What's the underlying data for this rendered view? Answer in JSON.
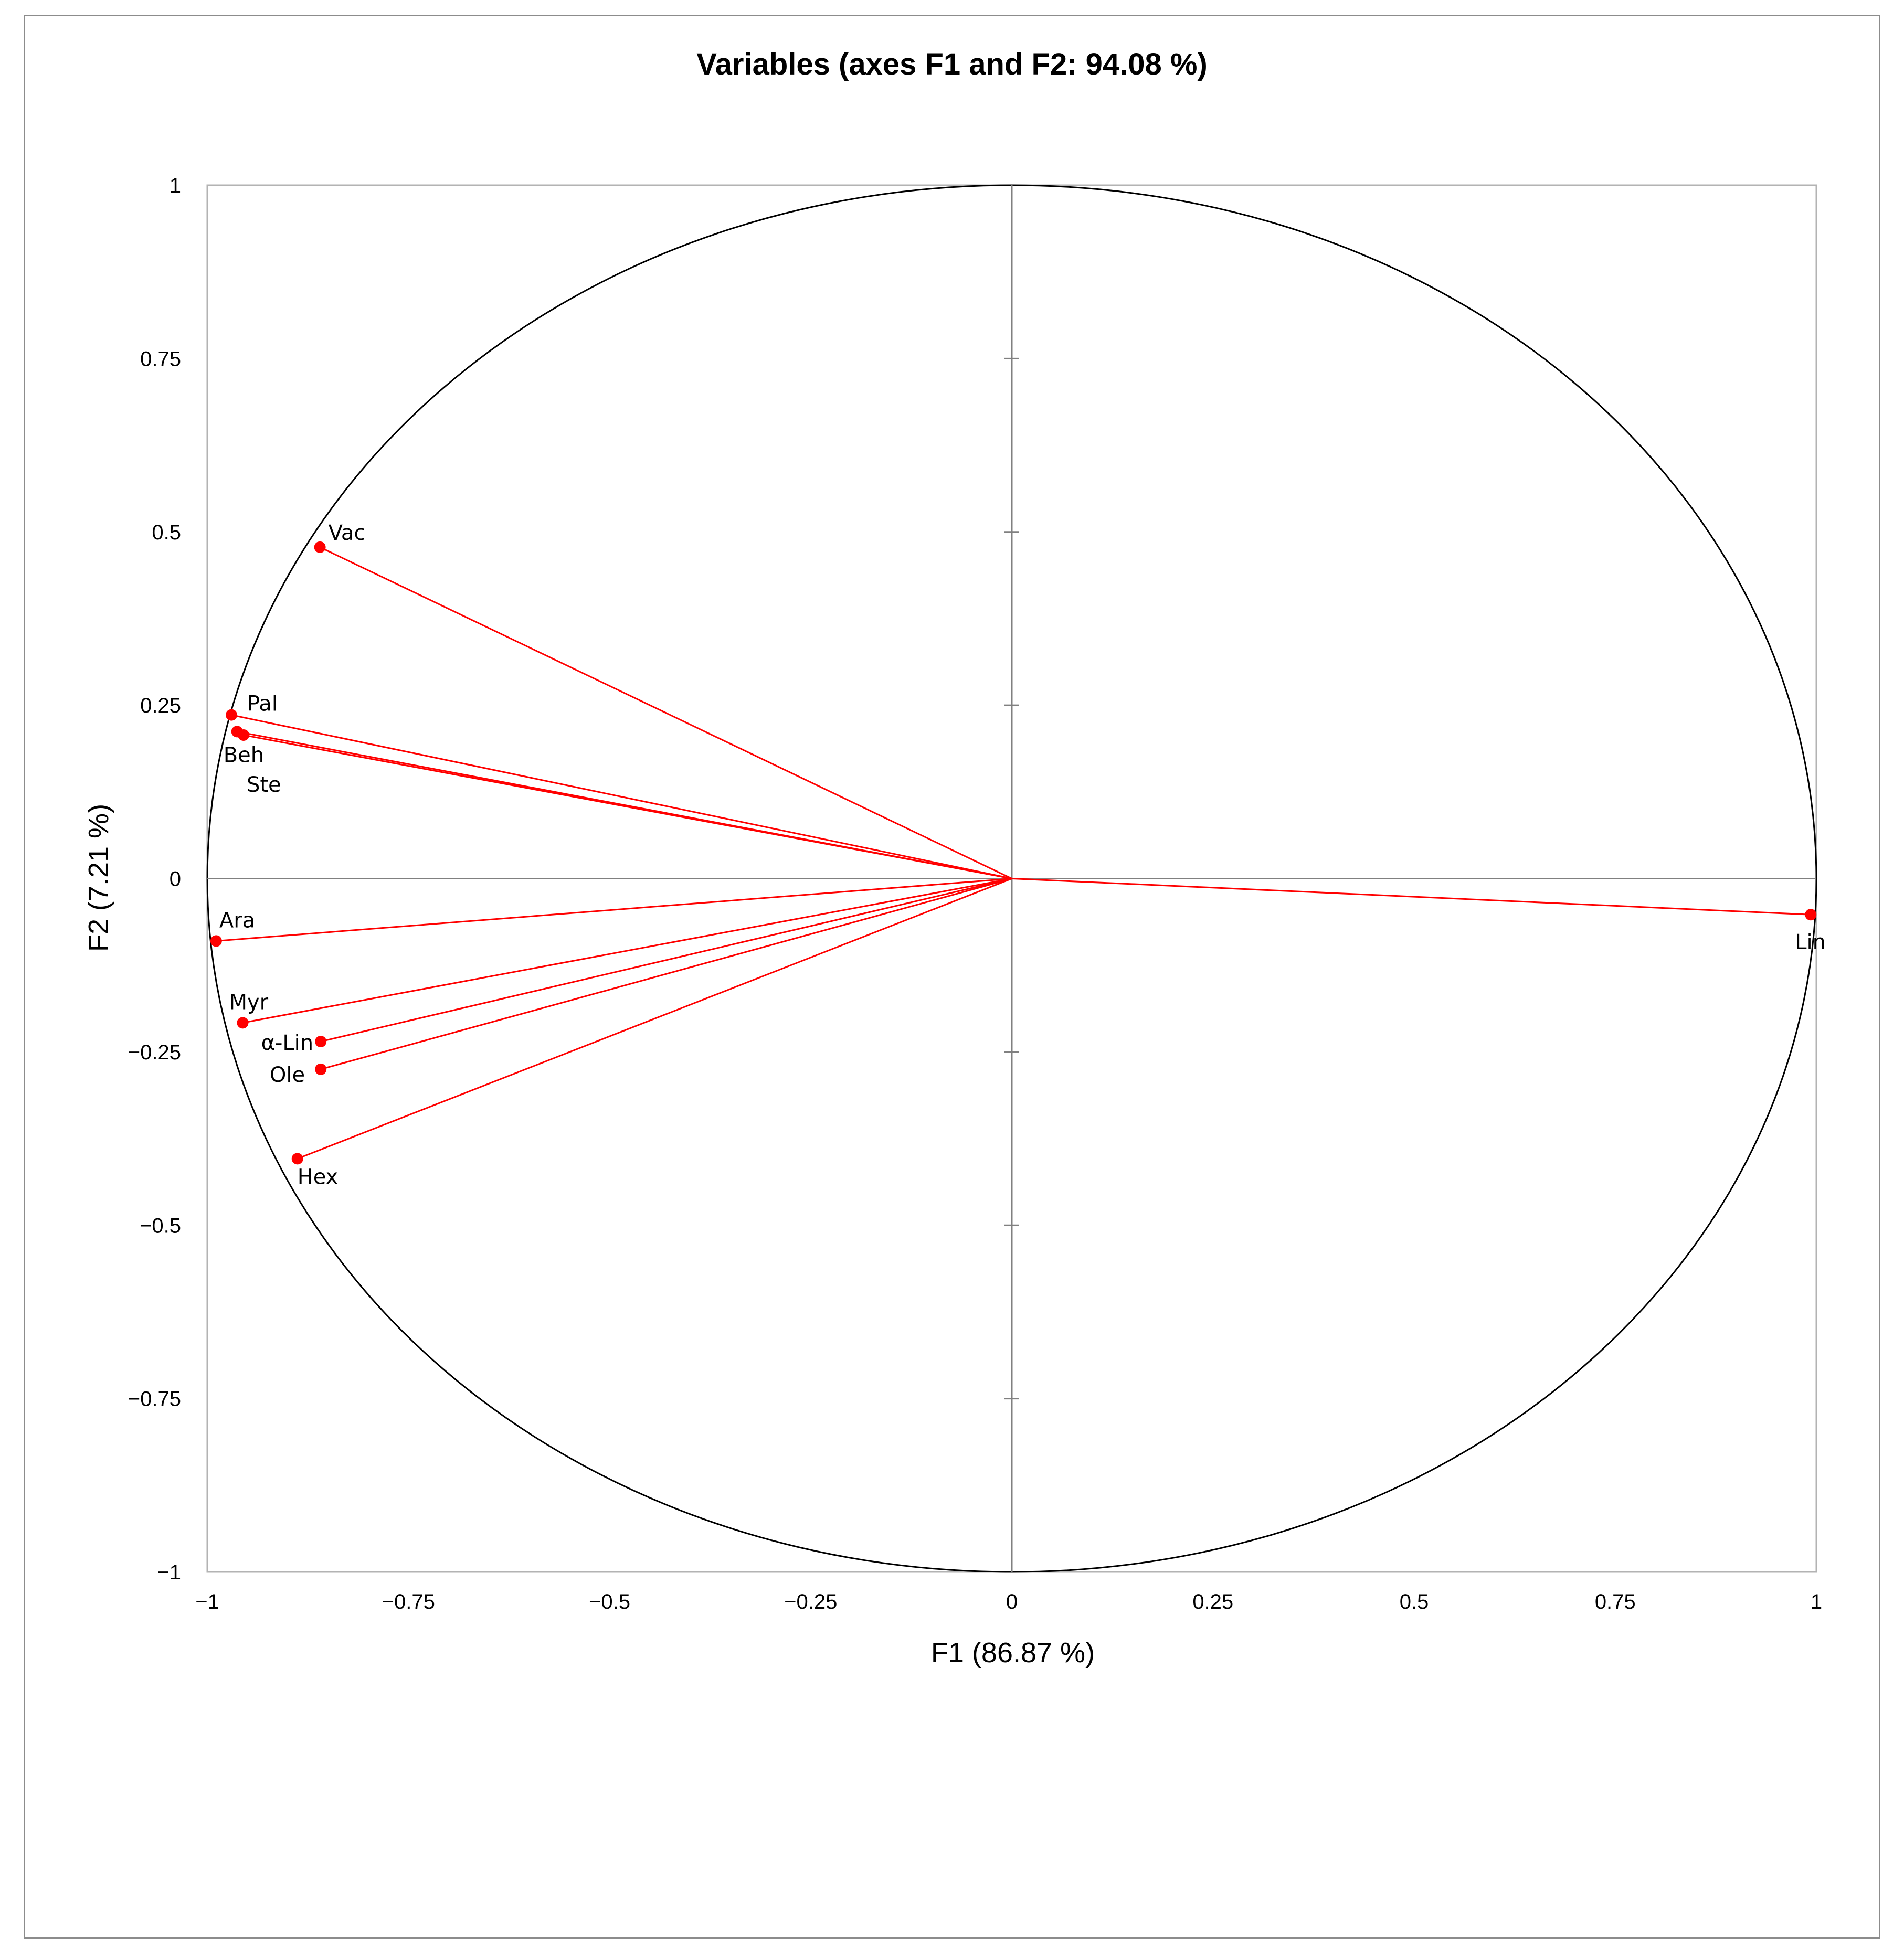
{
  "chart_data": {
    "type": "scatter",
    "title": "Variables (axes F1 and F2: 94.08 %)",
    "xlabel": "F1 (86.87 %)",
    "ylabel": "F2 (7.21 %)",
    "xlim": [
      -1,
      1
    ],
    "ylim": [
      -1,
      1
    ],
    "x_ticks": [
      -1,
      -0.75,
      -0.5,
      -0.25,
      0,
      0.25,
      0.5,
      0.75,
      1
    ],
    "x_tick_labels": [
      "−1",
      "−0.75",
      "−0.5",
      "−0.25",
      "0",
      "0.25",
      "0.5",
      "0.75",
      "1"
    ],
    "y_ticks": [
      1,
      0.75,
      0.5,
      0.25,
      0,
      -0.25,
      -0.5,
      -0.75,
      -1
    ],
    "y_tick_labels": [
      "1",
      "0.75",
      "0.5",
      "0.25",
      "0",
      "−0.25",
      "−0.5",
      "−0.75",
      "−1"
    ],
    "correlation_circle": true,
    "grid": false,
    "colors": {
      "vectors": "#ff0000",
      "circle": "#000000",
      "axes": "#808080"
    },
    "points": [
      {
        "label": "Vac",
        "x": -0.86,
        "y": 0.478
      },
      {
        "label": "Pal",
        "x": -0.97,
        "y": 0.236
      },
      {
        "label": "Beh",
        "x": -0.963,
        "y": 0.212
      },
      {
        "label": "Ste",
        "x": -0.955,
        "y": 0.207
      },
      {
        "label": "Ara",
        "x": -0.989,
        "y": -0.09
      },
      {
        "label": "Myr",
        "x": -0.956,
        "y": -0.208
      },
      {
        "label": "α-Lin",
        "x": -0.859,
        "y": -0.235
      },
      {
        "label": "Ole",
        "x": -0.859,
        "y": -0.275
      },
      {
        "label": "Hex",
        "x": -0.888,
        "y": -0.404
      },
      {
        "label": "Lin",
        "x": 0.993,
        "y": -0.052
      }
    ]
  }
}
